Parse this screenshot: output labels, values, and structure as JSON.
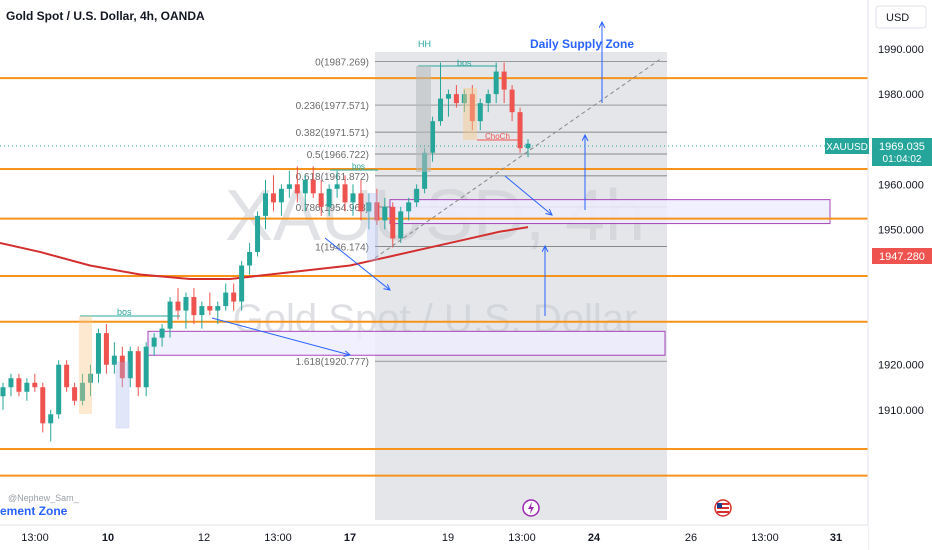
{
  "header": {
    "title": "Gold Spot / U.S. Dollar, 4h, OANDA",
    "currency": "USD"
  },
  "watermark": {
    "line1": "XAUUSD, 4h",
    "line2": "Gold Spot / U.S. Dollar"
  },
  "author": "@Nephew_Sam_",
  "colors": {
    "bull": "#26a69a",
    "bear": "#ef5350",
    "level": "#f7931a",
    "ma": "#d32f2f",
    "blue": "#2962ff",
    "zone_border": "#9c27b0",
    "zone_fill": "#eeeeff",
    "shade": "#d7d9dd",
    "fib": "#6b6b6b"
  },
  "price_scale": {
    "ticks": [
      "1990.000",
      "1980.000",
      "1960.000",
      "1950.000",
      "1920.000",
      "1910.000"
    ],
    "current": {
      "symbol": "XAUUSD",
      "price": "1969.035",
      "countdown": "01:04:02"
    },
    "ma_label": "1947.280"
  },
  "time_axis": {
    "ticks": [
      "13:00",
      "10",
      "12",
      "13:00",
      "17",
      "19",
      "13:00",
      "24",
      "26",
      "13:00",
      "31"
    ]
  },
  "labels": {
    "daily_supply_zone": "Daily Supply Zone",
    "demand_zone_partial": "ement Zone",
    "hh": "HH",
    "bos_1": "bos",
    "bos_2": "bos",
    "bos_3": "bos",
    "choch": "ChoCh"
  },
  "chart_data": {
    "type": "candlestick",
    "symbol": "XAUUSD",
    "timeframe": "4h",
    "ylim": [
      1892,
      1997
    ],
    "horizontal_levels": [
      "1983.546",
      "1963.408",
      "1952.392",
      "1939.671",
      "1929.528",
      "1901.294",
      "1895.389"
    ],
    "fibonacci": [
      {
        "label": "0(1987.269)",
        "price": 1987.269
      },
      {
        "label": "0.236(1977.571)",
        "price": 1977.571
      },
      {
        "label": "0.382(1971.571)",
        "price": 1971.571
      },
      {
        "label": "0.5(1966.722)",
        "price": 1966.722
      },
      {
        "label": "0.618(1961.872)",
        "price": 1961.872
      },
      {
        "label": "0.786(1954.968)",
        "price": 1954.968
      },
      {
        "label": "1(1946.174)",
        "price": 1946.174
      },
      {
        "label": "1.618(1920.777)",
        "price": 1920.777
      }
    ],
    "zones": [
      {
        "name": "upper-zone",
        "top": 1956.6,
        "bottom": 1954.4
      },
      {
        "name": "lower-zone",
        "top": 1927.4,
        "bottom": 1925.2
      }
    ],
    "candles": [
      [
        1913,
        1916,
        1910,
        1915
      ],
      [
        1915,
        1918,
        1913,
        1917
      ],
      [
        1917,
        1918,
        1913,
        1914
      ],
      [
        1914,
        1917,
        1912,
        1916
      ],
      [
        1916,
        1918,
        1914,
        1915
      ],
      [
        1915,
        1916,
        1905,
        1907
      ],
      [
        1907,
        1910,
        1903,
        1909
      ],
      [
        1909,
        1921,
        1908,
        1920
      ],
      [
        1920,
        1921,
        1914,
        1915
      ],
      [
        1915,
        1916,
        1911,
        1912
      ],
      [
        1912,
        1918,
        1911,
        1916
      ],
      [
        1916,
        1920,
        1913,
        1918
      ],
      [
        1918,
        1928,
        1916,
        1927
      ],
      [
        1927,
        1929,
        1918,
        1920
      ],
      [
        1920,
        1925,
        1918,
        1922
      ],
      [
        1922,
        1924,
        1915,
        1917
      ],
      [
        1917,
        1924,
        1915,
        1923
      ],
      [
        1923,
        1924,
        1913,
        1915
      ],
      [
        1915,
        1925,
        1913,
        1924
      ],
      [
        1924,
        1927,
        1922,
        1926
      ],
      [
        1926,
        1929,
        1924,
        1928
      ],
      [
        1928,
        1935,
        1926,
        1934
      ],
      [
        1934,
        1937,
        1930,
        1932
      ],
      [
        1932,
        1936,
        1928,
        1935
      ],
      [
        1935,
        1937,
        1929,
        1931
      ],
      [
        1931,
        1934,
        1928,
        1933
      ],
      [
        1933,
        1936,
        1931,
        1932
      ],
      [
        1932,
        1934,
        1929,
        1933
      ],
      [
        1933,
        1938,
        1932,
        1936
      ],
      [
        1936,
        1938,
        1932,
        1934
      ],
      [
        1934,
        1943,
        1932,
        1942
      ],
      [
        1942,
        1947,
        1940,
        1945
      ],
      [
        1945,
        1954,
        1944,
        1953
      ],
      [
        1953,
        1961,
        1950,
        1958
      ],
      [
        1958,
        1962,
        1954,
        1956
      ],
      [
        1956,
        1960,
        1953,
        1959
      ],
      [
        1959,
        1963,
        1957,
        1960
      ],
      [
        1960,
        1964,
        1956,
        1958
      ],
      [
        1958,
        1962,
        1954,
        1961
      ],
      [
        1961,
        1964,
        1957,
        1958
      ],
      [
        1958,
        1961,
        1953,
        1955
      ],
      [
        1955,
        1960,
        1953,
        1959
      ],
      [
        1959,
        1963,
        1957,
        1960
      ],
      [
        1960,
        1962,
        1954,
        1956
      ],
      [
        1956,
        1960,
        1953,
        1958
      ],
      [
        1958,
        1961,
        1952,
        1954
      ],
      [
        1954,
        1958,
        1950,
        1956
      ],
      [
        1956,
        1959,
        1951,
        1952
      ],
      [
        1952,
        1957,
        1950,
        1955
      ],
      [
        1955,
        1956,
        1946,
        1948
      ],
      [
        1948,
        1955,
        1947,
        1954
      ],
      [
        1954,
        1957,
        1952,
        1956
      ],
      [
        1956,
        1960,
        1955,
        1959
      ],
      [
        1959,
        1968,
        1958,
        1967
      ],
      [
        1967,
        1975,
        1965,
        1974
      ],
      [
        1974,
        1987,
        1973,
        1979
      ],
      [
        1979,
        1981,
        1975,
        1980
      ],
      [
        1980,
        1982,
        1977,
        1978
      ],
      [
        1978,
        1981,
        1976,
        1980
      ],
      [
        1980,
        1982,
        1972,
        1974
      ],
      [
        1974,
        1979,
        1972,
        1978
      ],
      [
        1978,
        1981,
        1976,
        1980
      ],
      [
        1980,
        1987,
        1978,
        1985
      ],
      [
        1985,
        1987,
        1978,
        1981
      ],
      [
        1981,
        1982,
        1974,
        1976
      ],
      [
        1976,
        1977,
        1967,
        1968
      ],
      [
        1968,
        1970,
        1966,
        1969
      ]
    ],
    "moving_average": [
      [
        0,
        1947
      ],
      [
        40,
        1945
      ],
      [
        90,
        1942
      ],
      [
        140,
        1940
      ],
      [
        190,
        1939
      ],
      [
        230,
        1939
      ],
      [
        270,
        1940
      ],
      [
        310,
        1941
      ],
      [
        350,
        1942
      ],
      [
        390,
        1944
      ],
      [
        430,
        1946
      ],
      [
        470,
        1948
      ],
      [
        500,
        1949.5
      ],
      [
        528,
        1950.5
      ]
    ]
  }
}
